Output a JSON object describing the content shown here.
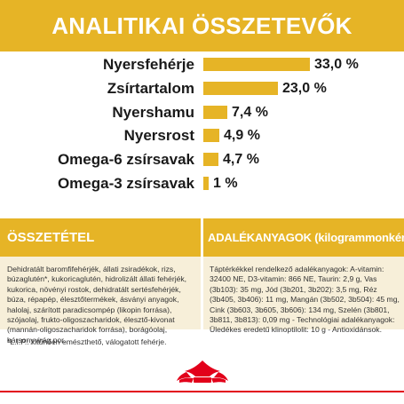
{
  "header": {
    "title": "ANALITIKAI ÖSSZETEVŐK"
  },
  "analytics": [
    {
      "label": "Nyersfehérje",
      "value": "33,0 %",
      "percent": 33.0
    },
    {
      "label": "Zsírtartalom",
      "value": "23,0 %",
      "percent": 23.0
    },
    {
      "label": "Nyershamu",
      "value": "7,4 %",
      "percent": 7.4
    },
    {
      "label": "Nyersrost",
      "value": "4,9 %",
      "percent": 4.9
    },
    {
      "label": "Omega-6 zsírsavak",
      "value": "4,7 %",
      "percent": 4.7
    },
    {
      "label": "Omega-3 zsírsavak",
      "value": "1 %",
      "percent": 1.0
    }
  ],
  "composition": {
    "title": "ÖSSZETÉTEL",
    "text": "Dehidratált baromfifehérjék, állati zsiradékok, rizs, búzaglutén*, kukoricaglutén, hidrolizált állati fehérjék, kukorica, növényi rostok, dehidratált sertésfehérjék, búza, répapép, élesztőtermékek, ásványi anyagok, halolaj, szárított paradicsompép (likopin forrása), szójaolaj, frukto-oligoszacharidok, élesztő-kivonat (mannán-oligoszacharidok forrása), borágóolaj, bársonyvirág por.",
    "footnote": "*L.I.P.: kitűnően emészthető, válogatott fehérje."
  },
  "additives": {
    "title": "ADALÉKANYAGOK (kilogrammonként)",
    "text": "Táptérkékkel rendelkező adalékanyagok: A-vitamin: 32400 NE, D3-vitamin: 866 NE, Taurin: 2,9 g, Vas (3b103): 35 mg, Jód (3b201, 3b202): 3,5 mg, Réz (3b405, 3b406): 11 mg, Mangán (3b502, 3b504): 45 mg, Cink (3b603, 3b605, 3b606): 134 mg, Szelén (3b801, 3b811, 3b813): 0,09 mg - Technológiai adalékanyagok: Üledékes eredetű klinoptilolit: 10 g - Antioxidánsok."
  },
  "colors": {
    "accent": "#E6B426",
    "panel": "#F7EFD9",
    "brand_red": "#E2001A"
  },
  "logo": {
    "icon": "royal-crown-logo-icon"
  }
}
